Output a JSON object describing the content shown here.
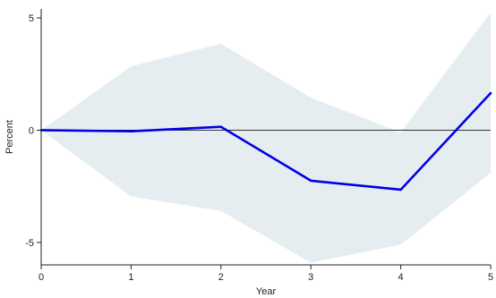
{
  "chart_data": {
    "type": "line",
    "xlabel": "Year",
    "ylabel": "Percent",
    "xlim": [
      0,
      5
    ],
    "ylim": [
      -6,
      5.4
    ],
    "xticks": [
      0,
      1,
      2,
      3,
      4,
      5
    ],
    "yticks": [
      -5,
      0,
      5
    ],
    "ytick_labels": [
      "-5",
      "0",
      "5"
    ],
    "grid": false,
    "zero_line": true,
    "series": [
      {
        "values": [
          {
            "x": 0,
            "y": 0
          },
          {
            "x": 1,
            "y": -0.05
          },
          {
            "x": 2,
            "y": 0.15
          },
          {
            "x": 3,
            "y": -2.25
          },
          {
            "x": 4,
            "y": -2.65
          },
          {
            "x": 5,
            "y": 1.65
          }
        ],
        "color": "#0000e6"
      }
    ],
    "confidence_band": {
      "upper": [
        {
          "x": 0,
          "y": 0
        },
        {
          "x": 1,
          "y": 2.85
        },
        {
          "x": 2,
          "y": 3.85
        },
        {
          "x": 3,
          "y": 1.45
        },
        {
          "x": 4,
          "y": -0.1
        },
        {
          "x": 5,
          "y": 5.25
        }
      ],
      "lower": [
        {
          "x": 0,
          "y": 0
        },
        {
          "x": 1,
          "y": -2.95
        },
        {
          "x": 2,
          "y": -3.6
        },
        {
          "x": 3,
          "y": -5.9
        },
        {
          "x": 4,
          "y": -5.1
        },
        {
          "x": 5,
          "y": -1.9
        }
      ],
      "color": "#e6edf0"
    },
    "axis_color": "#222222",
    "zero_line_color": "#333333"
  }
}
